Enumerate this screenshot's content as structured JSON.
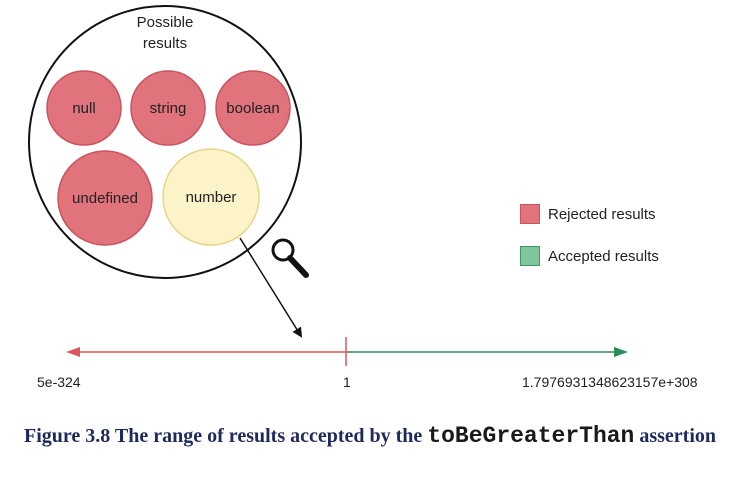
{
  "diagram": {
    "circle_title_line1": "Possible",
    "circle_title_line2": "results",
    "types": [
      {
        "label": "null",
        "status": "rejected"
      },
      {
        "label": "string",
        "status": "rejected"
      },
      {
        "label": "boolean",
        "status": "rejected"
      },
      {
        "label": "undefined",
        "status": "rejected"
      },
      {
        "label": "number",
        "status": "accepted"
      }
    ],
    "magnifier_icon": "magnifying-glass-icon"
  },
  "legend": {
    "rejected_label": "Rejected results",
    "accepted_label": "Accepted results"
  },
  "number_line": {
    "min_label": "5e-324",
    "threshold_label": "1",
    "max_label": "1.7976931348623157e+308"
  },
  "caption": {
    "prefix": "Figure 3.8 The range of results accepted by the ",
    "code": "toBeGreaterThan",
    "suffix": " assertion"
  },
  "colors": {
    "rejected_fill": "#e0737c",
    "rejected_stroke": "#c9545e",
    "number_fill": "#fdf3c8",
    "number_stroke": "#e6d58a",
    "accepted_fill": "#7fc79a",
    "accepted_stroke": "#3f9960",
    "rejected_line": "#e0575b",
    "accepted_line": "#2e8b57"
  }
}
